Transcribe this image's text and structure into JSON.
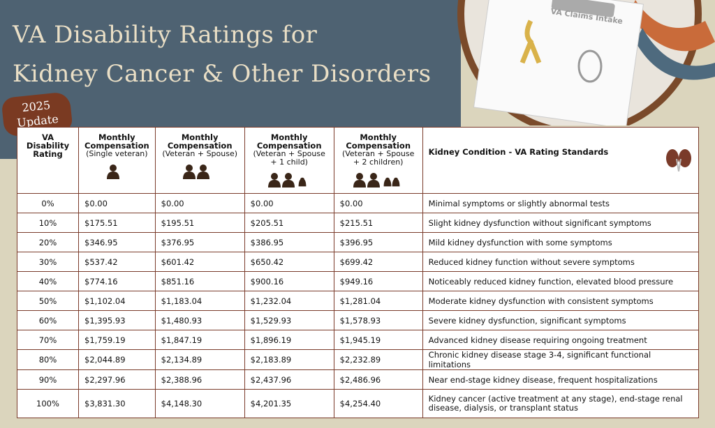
{
  "header": {
    "title_lines": [
      "VA Disability Ratings for",
      "Kidney Cancer & Other Disorders"
    ],
    "badge_lines": [
      "2025",
      "Update"
    ],
    "clipboard_label": "VA Claims Intake"
  },
  "table": {
    "columns": [
      {
        "title": "VA Disability Rating"
      },
      {
        "title": "Monthly Compensation",
        "subtitle": "(Single veteran)"
      },
      {
        "title": "Monthly Compensation",
        "subtitle": "(Veteran + Spouse)"
      },
      {
        "title": "Monthly Compensation",
        "subtitle": "(Veteran + Spouse + 1 child)"
      },
      {
        "title": "Monthly Compensation",
        "subtitle": "(Veteran + Spouse + 2 children)"
      },
      {
        "title": "Kidney Condition - VA Rating Standards"
      }
    ],
    "rows": [
      [
        "0%",
        "$0.00",
        "$0.00",
        "$0.00",
        "$0.00",
        "Minimal symptoms or slightly abnormal tests"
      ],
      [
        "10%",
        "$175.51",
        "$195.51",
        "$205.51",
        "$215.51",
        "Slight kidney dysfunction without significant symptoms"
      ],
      [
        "20%",
        "$346.95",
        "$376.95",
        "$386.95",
        "$396.95",
        "Mild kidney dysfunction with some symptoms"
      ],
      [
        "30%",
        "$537.42",
        "$601.42",
        "$650.42",
        "$699.42",
        "Reduced kidney function without severe symptoms"
      ],
      [
        "40%",
        "$774.16",
        "$851.16",
        "$900.16",
        "$949.16",
        "Noticeably reduced kidney function, elevated blood pressure"
      ],
      [
        "50%",
        "$1,102.04",
        "$1,183.04",
        "$1,232.04",
        "$1,281.04",
        "Moderate kidney dysfunction with consistent symptoms"
      ],
      [
        "60%",
        "$1,395.93",
        "$1,480.93",
        "$1,529.93",
        "$1,578.93",
        "Severe kidney dysfunction, significant symptoms"
      ],
      [
        "70%",
        "$1,759.19",
        "$1,847.19",
        "$1,896.19",
        "$1,945.19",
        "Advanced kidney disease requiring ongoing treatment"
      ],
      [
        "80%",
        "$2,044.89",
        "$2,134.89",
        "$2,183.89",
        "$2,232.89",
        "Chronic kidney disease stage 3-4, significant functional limitations"
      ],
      [
        "90%",
        "$2,297.96",
        "$2,388.96",
        "$2,437.96",
        "$2,486.96",
        "Near end-stage kidney disease, frequent hospitalizations"
      ],
      [
        "100%",
        "$3,831.30",
        "$4,148.30",
        "$4,201.35",
        "$4,254.40",
        "Kidney cancer (active treatment at any stage), end-stage renal disease, dialysis, or transplant status"
      ]
    ]
  }
}
